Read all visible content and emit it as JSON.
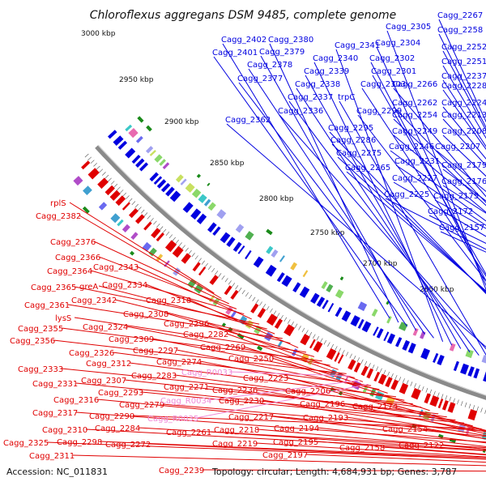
{
  "title": "Chloroflexus aggregans DSM 9485, complete genome",
  "footer": {
    "accession": "Accession: NC_011831",
    "summary": "Topology: circular; Length: 4,684,931 bp; Genes: 3,787"
  },
  "colors": {
    "forward": "#0000e0",
    "reverse": "#e00000",
    "rna": "#f08ad8",
    "backbone": "#8a8a8a",
    "tick": "#1a8a1a"
  },
  "scale_labels": [
    "3000 kbp",
    "2950 kbp",
    "2900 kbp",
    "2850 kbp",
    "2800 kbp",
    "2750 kbp",
    "2700 kbp",
    "2650 kbp"
  ],
  "forward_labels": [
    "Cagg_2402",
    "Cagg_2380",
    "Cagg_2401",
    "Cagg_2379",
    "Cagg_2378",
    "Cagg_2377",
    "Cagg_2341",
    "Cagg_2340",
    "Cagg_2339",
    "Cagg_2338",
    "Cagg_2337",
    "trpC",
    "Cagg_2336",
    "Cagg_2362",
    "Cagg_2305",
    "Cagg_2304",
    "Cagg_2302",
    "Cagg_2301",
    "Cagg_2303",
    "Cagg_2299",
    "Cagg_2295",
    "Cagg_2286",
    "Cagg_2275",
    "Cagg_2265",
    "Cagg_2267",
    "Cagg_2258",
    "Cagg_2252",
    "Cagg_2251",
    "Cagg_2237",
    "Cagg_2266",
    "Cagg_2228",
    "Cagg_2262",
    "Cagg_2224",
    "Cagg_2254",
    "Cagg_2213",
    "Cagg_2249",
    "Cagg_2208",
    "Cagg_2246",
    "Cagg_2207",
    "Cagg_2231",
    "Cagg_2179",
    "Cagg_2227",
    "Cagg_2176",
    "Cagg_2225",
    "Cagg_2175",
    "Cagg_2172",
    "Cagg_2157"
  ],
  "reverse_labels": [
    "rplS",
    "Cagg_2382",
    "Cagg_2376",
    "Cagg_2366",
    "Cagg_2364",
    "Cagg_2343",
    "Cagg_2365",
    "greA",
    "Cagg_2334",
    "Cagg_2361",
    "Cagg_2342",
    "Cagg_2318",
    "lysS",
    "Cagg_2308",
    "Cagg_2355",
    "Cagg_2324",
    "Cagg_2296",
    "Cagg_2356",
    "Cagg_2309",
    "Cagg_2282",
    "Cagg_2326",
    "Cagg_2297",
    "Cagg_2269",
    "Cagg_2312",
    "Cagg_2274",
    "Cagg_2333",
    "Cagg_2283",
    "Cagg_2250",
    "Cagg_2307",
    "Cagg_2271",
    "Cagg_2331",
    "Cagg_2293",
    "Cagg_2223",
    "Cagg_2290",
    "Cagg_2279",
    "Cagg_2236",
    "Cagg_2206",
    "Cagg_2316",
    "Cagg_2230",
    "Cagg_2196",
    "Cagg_2317",
    "Cagg_2174",
    "Cagg_2193",
    "Cagg_2284",
    "Cagg_2217",
    "Cagg_2310",
    "Cagg_2261",
    "Cagg_2218",
    "Cagg_2194",
    "Cagg_2154",
    "Cagg_2298",
    "Cagg_2325",
    "Cagg_2272",
    "Cagg_2219",
    "Cagg_2195",
    "Cagg_2158",
    "Cagg_2122",
    "Cagg_2311",
    "Cagg_2197",
    "Cagg_2239"
  ],
  "rna_labels": [
    "Cagg_R0033",
    "Cagg_R0034",
    "Cagg_R0035"
  ]
}
